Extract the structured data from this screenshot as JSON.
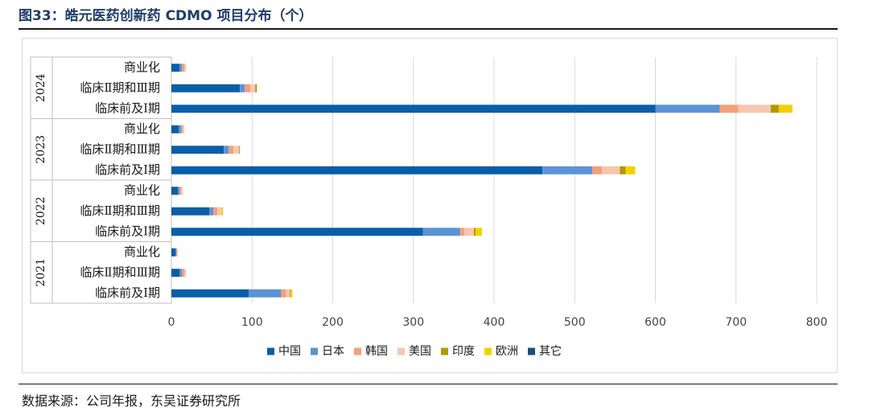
{
  "header": {
    "title": "图33：皓元医药创新药 CDMO 项目分布（个）"
  },
  "footer": {
    "source": "数据来源：公司年报，东吴证券研究所"
  },
  "chart_data": {
    "type": "bar",
    "orientation": "horizontal",
    "stacked": true,
    "xlim": [
      0,
      800
    ],
    "xticks": [
      0,
      100,
      200,
      300,
      400,
      500,
      600,
      700,
      800
    ],
    "grid": true,
    "legend_position": "bottom",
    "groups": [
      {
        "year": "2024",
        "rows": [
          {
            "label": "商业化",
            "values": [
              10,
              3,
              3,
              2,
              0,
              0,
              0
            ]
          },
          {
            "label": "临床Ⅱ期和Ⅲ期",
            "values": [
              85,
              6,
              7,
              6,
              2,
              0,
              0
            ]
          },
          {
            "label": "临床前及Ⅰ期",
            "values": [
              600,
              80,
              23,
              40,
              10,
              17,
              0
            ]
          }
        ]
      },
      {
        "year": "2023",
        "rows": [
          {
            "label": "商业化",
            "values": [
              9,
              3,
              2,
              2,
              0,
              0,
              0
            ]
          },
          {
            "label": "临床Ⅱ期和Ⅲ期",
            "values": [
              65,
              6,
              6,
              7,
              1,
              0,
              0
            ]
          },
          {
            "label": "临床前及Ⅰ期",
            "values": [
              460,
              62,
              12,
              22,
              7,
              12,
              0
            ]
          }
        ]
      },
      {
        "year": "2022",
        "rows": [
          {
            "label": "商业化",
            "values": [
              8,
              2,
              2,
              2,
              0,
              0,
              0
            ]
          },
          {
            "label": "临床Ⅱ期和Ⅲ期",
            "values": [
              47,
              5,
              5,
              5,
              0,
              2,
              0
            ]
          },
          {
            "label": "临床前及Ⅰ期",
            "values": [
              312,
              46,
              5,
              12,
              2,
              8,
              0
            ]
          }
        ]
      },
      {
        "year": "2021",
        "rows": [
          {
            "label": "商业化",
            "values": [
              5,
              1,
              1,
              1,
              0,
              0,
              0
            ]
          },
          {
            "label": "临床Ⅱ期和Ⅲ期",
            "values": [
              10,
              3,
              3,
              2,
              0,
              0,
              0
            ]
          },
          {
            "label": "临床前及Ⅰ期",
            "values": [
              96,
              40,
              6,
              5,
              1,
              2,
              0
            ]
          }
        ]
      }
    ],
    "series": [
      {
        "name": "中国",
        "color": "#0a5ea8"
      },
      {
        "name": "日本",
        "color": "#5b93d6"
      },
      {
        "name": "韩国",
        "color": "#f4a078"
      },
      {
        "name": "美国",
        "color": "#f8c6ae"
      },
      {
        "name": "印度",
        "color": "#b09a00"
      },
      {
        "name": "欧洲",
        "color": "#f5d000"
      },
      {
        "name": "其它",
        "color": "#1e4e79"
      }
    ]
  }
}
